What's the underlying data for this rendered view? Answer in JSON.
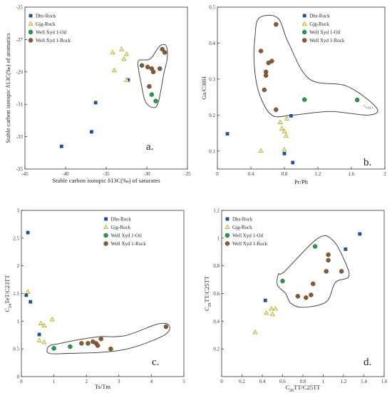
{
  "colors": {
    "Dhs-Rock": "#1f4e9c",
    "Gjg-Rock": "#f3f08a",
    "Gjg-Rock-stroke": "#a8a23a",
    "Well Xyd 1-Oil": "#1f9c4a",
    "Well Xyd 1-Rock": "#8b5a2b"
  },
  "legend_order": [
    "Dhs-Rock",
    "Gjg-Rock",
    "Well Xyd 1-Oil",
    "Well Xyd 1-Rock"
  ],
  "chart_data": [
    {
      "id": "a",
      "type": "scatter",
      "panel_label": "a.",
      "xlabel": "Stable carbon isotopic δ13C(‰) of saturates",
      "ylabel": "Stable carbon isotopic δ13C(‰) of aromatics",
      "xlim": [
        -45,
        -25
      ],
      "ylim": [
        -35,
        -25
      ],
      "x_ticks": [
        -45,
        -40,
        -35,
        -30,
        -25
      ],
      "y_ticks": [
        -35,
        -33,
        -31,
        -29,
        -27,
        -25
      ],
      "legend_position": "top-left",
      "series": [
        {
          "name": "Dhs-Rock",
          "marker": "square",
          "points": [
            [
              -40.5,
              -33.6
            ],
            [
              -36.8,
              -32.7
            ],
            [
              -36.3,
              -30.9
            ],
            [
              -32.3,
              -29.5
            ]
          ]
        },
        {
          "name": "Gjg-Rock",
          "marker": "triangle",
          "points": [
            [
              -34.2,
              -27.8
            ],
            [
              -33.1,
              -27.6
            ],
            [
              -32.5,
              -27.9
            ],
            [
              -32.8,
              -28.2
            ],
            [
              -34.0,
              -28.9
            ],
            [
              -32.5,
              -29.5
            ]
          ]
        },
        {
          "name": "Well Xyd 1-Oil",
          "marker": "circle",
          "points": [
            [
              -29.4,
              -30.4
            ],
            [
              -28.9,
              -30.8
            ]
          ]
        },
        {
          "name": "Well Xyd 1-Rock",
          "marker": "circle",
          "points": [
            [
              -30.6,
              -28.6
            ],
            [
              -29.9,
              -28.7
            ],
            [
              -29.4,
              -28.8
            ],
            [
              -29.2,
              -29.0
            ],
            [
              -28.4,
              -28.8
            ],
            [
              -28.1,
              -27.6
            ],
            [
              -27.8,
              -27.8
            ],
            [
              -29.7,
              -29.9
            ]
          ]
        }
      ],
      "envelope": [
        [
          -31.0,
          -28.3
        ],
        [
          -29.6,
          -28.2
        ],
        [
          -28.4,
          -27.4
        ],
        [
          -27.6,
          -27.4
        ],
        [
          -27.5,
          -28.2
        ],
        [
          -27.9,
          -29.1
        ],
        [
          -28.6,
          -30.9
        ],
        [
          -29.3,
          -31.2
        ],
        [
          -30.2,
          -30.8
        ],
        [
          -30.7,
          -29.7
        ],
        [
          -31.0,
          -28.9
        ]
      ]
    },
    {
      "id": "b",
      "type": "scatter",
      "panel_label": "b.",
      "xlabel": "Pr/Ph",
      "ylabel": "Ga/C30H",
      "xlim": [
        0,
        2
      ],
      "ylim": [
        0.05,
        0.5
      ],
      "x_ticks": [
        0,
        0.4,
        0.8,
        1.2,
        1.6,
        2
      ],
      "y_ticks": [
        0.1,
        0.2,
        0.3,
        0.4,
        0.5
      ],
      "legend_position": "top-right",
      "series": [
        {
          "name": "Dhs-Rock",
          "marker": "square",
          "points": [
            [
              0.12,
              0.148
            ],
            [
              0.8,
              0.093
            ],
            [
              0.88,
              0.198
            ],
            [
              0.9,
              0.068
            ]
          ]
        },
        {
          "name": "Gjg-Rock",
          "marker": "triangle",
          "points": [
            [
              0.52,
              0.101
            ],
            [
              0.75,
              0.18
            ],
            [
              0.77,
              0.162
            ],
            [
              0.8,
              0.155
            ],
            [
              0.83,
              0.19
            ],
            [
              0.82,
              0.142
            ],
            [
              0.8,
              0.104
            ]
          ]
        },
        {
          "name": "Well Xyd 1-Oil",
          "marker": "circle",
          "points": [
            [
              1.04,
              0.243
            ],
            [
              1.67,
              0.242
            ]
          ]
        },
        {
          "name": "Well Xyd 1-Rock",
          "marker": "circle",
          "points": [
            [
              0.52,
              0.378
            ],
            [
              0.58,
              0.32
            ],
            [
              0.58,
              0.31
            ],
            [
              0.61,
              0.345
            ],
            [
              0.65,
              0.35
            ],
            [
              0.7,
              0.452
            ],
            [
              0.7,
              0.215
            ],
            [
              0.56,
              0.27
            ]
          ]
        }
      ],
      "envelope": [
        [
          0.45,
          0.42
        ],
        [
          0.5,
          0.47
        ],
        [
          0.72,
          0.47
        ],
        [
          0.85,
          0.4
        ],
        [
          1.1,
          0.3
        ],
        [
          1.55,
          0.28
        ],
        [
          1.9,
          0.22
        ],
        [
          1.8,
          0.2
        ],
        [
          1.35,
          0.21
        ],
        [
          0.9,
          0.2
        ],
        [
          0.65,
          0.2
        ],
        [
          0.5,
          0.26
        ],
        [
          0.44,
          0.34
        ]
      ],
      "annotations": [
        {
          "text": "Oil-1",
          "x": 1.78,
          "y": 0.223
        }
      ]
    },
    {
      "id": "c",
      "type": "scatter",
      "panel_label": "c.",
      "xlabel": "Ts/Tm",
      "ylabel": "C24TeT/C23TT",
      "xlim": [
        0,
        5
      ],
      "ylim": [
        0,
        3
      ],
      "x_ticks": [
        0,
        1,
        2,
        3,
        4,
        5
      ],
      "y_ticks": [
        0,
        0.5,
        1,
        1.5,
        2,
        2.5,
        3
      ],
      "legend_position": "top-right",
      "series": [
        {
          "name": "Dhs-Rock",
          "marker": "square",
          "points": [
            [
              0.2,
              2.6
            ],
            [
              0.15,
              1.47
            ],
            [
              0.28,
              1.35
            ],
            [
              0.55,
              0.76
            ]
          ]
        },
        {
          "name": "Gjg-Rock",
          "marker": "triangle",
          "points": [
            [
              0.2,
              1.53
            ],
            [
              0.6,
              0.96
            ],
            [
              0.7,
              0.92
            ],
            [
              0.95,
              1.03
            ],
            [
              0.55,
              0.65
            ],
            [
              0.7,
              0.62
            ]
          ]
        },
        {
          "name": "Well Xyd 1-Oil",
          "marker": "circle",
          "points": [
            [
              1.0,
              0.51
            ],
            [
              1.5,
              0.54
            ]
          ]
        },
        {
          "name": "Well Xyd 1-Rock",
          "marker": "circle",
          "points": [
            [
              1.85,
              0.6
            ],
            [
              2.05,
              0.6
            ],
            [
              2.2,
              0.63
            ],
            [
              2.3,
              0.6
            ],
            [
              2.35,
              0.56
            ],
            [
              2.45,
              0.68
            ],
            [
              2.75,
              0.5
            ],
            [
              4.45,
              0.9
            ]
          ]
        }
      ],
      "envelope": [
        [
          0.85,
          0.42
        ],
        [
          0.85,
          0.55
        ],
        [
          1.2,
          0.6
        ],
        [
          1.8,
          0.67
        ],
        [
          2.4,
          0.72
        ],
        [
          3.2,
          0.74
        ],
        [
          4.2,
          0.95
        ],
        [
          4.55,
          0.92
        ],
        [
          4.4,
          0.75
        ],
        [
          3.4,
          0.52
        ],
        [
          2.5,
          0.44
        ],
        [
          1.5,
          0.42
        ]
      ]
    },
    {
      "id": "d",
      "type": "scatter",
      "panel_label": "d.",
      "xlabel": "C26TT/C25TT",
      "ylabel": "C28TT/C25TT",
      "xlim": [
        0,
        1.6
      ],
      "ylim": [
        0,
        1.2
      ],
      "x_ticks": [
        0,
        0.2,
        0.4,
        0.6,
        0.8,
        1,
        1.2,
        1.4,
        1.6
      ],
      "y_ticks": [
        0.2,
        0.4,
        0.6,
        0.8,
        1,
        1.2
      ],
      "legend_position": "top-left",
      "series": [
        {
          "name": "Dhs-Rock",
          "marker": "square",
          "points": [
            [
              0.43,
              0.55
            ],
            [
              1.22,
              0.92
            ],
            [
              1.36,
              1.03
            ]
          ]
        },
        {
          "name": "Gjg-Rock",
          "marker": "triangle",
          "points": [
            [
              0.33,
              0.32
            ],
            [
              0.44,
              0.46
            ],
            [
              0.49,
              0.49
            ],
            [
              0.5,
              0.45
            ],
            [
              0.53,
              0.49
            ]
          ]
        },
        {
          "name": "Well Xyd 1-Oil",
          "marker": "circle",
          "points": [
            [
              0.6,
              0.69
            ],
            [
              0.92,
              0.94
            ]
          ]
        },
        {
          "name": "Well Xyd 1-Rock",
          "marker": "circle",
          "points": [
            [
              0.75,
              0.58
            ],
            [
              0.83,
              0.57
            ],
            [
              0.88,
              0.59
            ],
            [
              0.9,
              0.67
            ],
            [
              1.03,
              0.76
            ],
            [
              1.05,
              0.84
            ],
            [
              1.05,
              0.88
            ],
            [
              1.18,
              0.76
            ]
          ]
        }
      ],
      "envelope": [
        [
          0.56,
          0.74
        ],
        [
          0.62,
          0.76
        ],
        [
          0.95,
          1.0
        ],
        [
          1.1,
          0.98
        ],
        [
          1.22,
          0.82
        ],
        [
          1.25,
          0.72
        ],
        [
          1.12,
          0.68
        ],
        [
          1.03,
          0.54
        ],
        [
          0.8,
          0.5
        ],
        [
          0.68,
          0.53
        ],
        [
          0.63,
          0.6
        ],
        [
          0.55,
          0.66
        ]
      ]
    }
  ]
}
